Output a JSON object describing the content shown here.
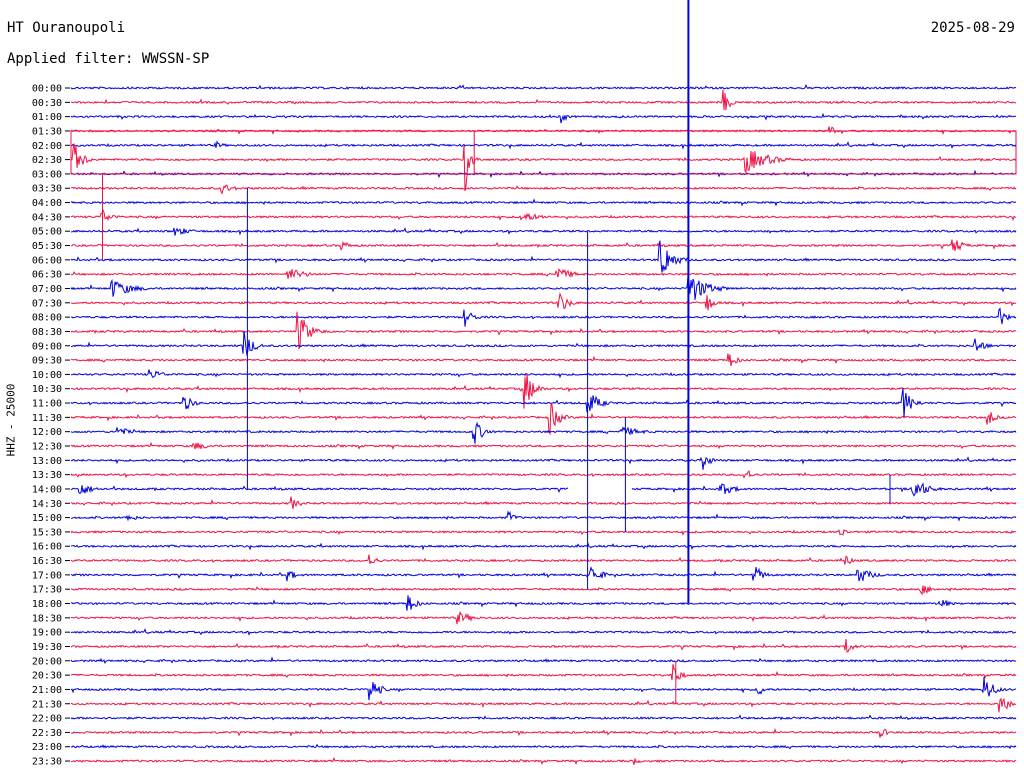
{
  "header": {
    "station": "HT Ouranoupoli",
    "filter": "Applied filter: WWSSN-SP",
    "date": "2025-08-29",
    "channel": "HHZ - 25000"
  },
  "colors": {
    "trace_a": "#0000dd",
    "trace_b": "#ee1144"
  },
  "chart_data": {
    "type": "line",
    "title": "HT Ouranoupoli",
    "subtitle": "Applied filter: WWSSN-SP",
    "ylabel": "HHZ - 25000",
    "y_tick_labels": [
      "00:00",
      "00:30",
      "01:00",
      "01:30",
      "02:00",
      "02:30",
      "03:00",
      "03:30",
      "04:00",
      "04:30",
      "05:00",
      "05:30",
      "06:00",
      "06:30",
      "07:00",
      "07:30",
      "08:00",
      "08:30",
      "09:00",
      "09:30",
      "10:00",
      "10:30",
      "11:00",
      "11:30",
      "12:00",
      "12:30",
      "13:00",
      "13:30",
      "14:00",
      "14:30",
      "15:00",
      "15:30",
      "16:00",
      "16:30",
      "17:00",
      "17:30",
      "18:00",
      "18:30",
      "19:00",
      "19:30",
      "20:00",
      "20:30",
      "21:00",
      "21:30",
      "22:00",
      "22:30",
      "23:00",
      "23:30"
    ],
    "x_range_minutes": [
      0,
      30
    ],
    "series": [
      {
        "color": "blue",
        "rows": "even"
      },
      {
        "color": "red",
        "rows": "odd"
      }
    ],
    "events": [
      {
        "row": "00:30",
        "minute": 20.7,
        "amp": 14,
        "dur": 0.6
      },
      {
        "row": "01:00",
        "minute": 15.6,
        "amp": 7,
        "dur": 0.4
      },
      {
        "row": "01:30",
        "minute": 24.1,
        "amp": 7,
        "dur": 0.4
      },
      {
        "row": "02:00",
        "minute": 4.6,
        "amp": 4,
        "dur": 0.8
      },
      {
        "row": "02:30",
        "minute": 0.1,
        "amp": 18,
        "dur": 0.8
      },
      {
        "row": "02:30",
        "minute": 12.5,
        "amp": 40,
        "dur": 0.5
      },
      {
        "row": "02:30",
        "minute": 21.4,
        "amp": 14,
        "dur": 2.0
      },
      {
        "row": "03:30",
        "minute": 4.8,
        "amp": 6,
        "dur": 1.0
      },
      {
        "row": "04:30",
        "minute": 1.0,
        "amp": 8,
        "dur": 0.8
      },
      {
        "row": "04:30",
        "minute": 14.3,
        "amp": 5,
        "dur": 2.0
      },
      {
        "row": "05:00",
        "minute": 3.3,
        "amp": 5,
        "dur": 1.5
      },
      {
        "row": "05:30",
        "minute": 8.6,
        "amp": 5,
        "dur": 0.8
      },
      {
        "row": "05:30",
        "minute": 28.0,
        "amp": 10,
        "dur": 0.8
      },
      {
        "row": "06:00",
        "minute": 18.7,
        "amp": 25,
        "dur": 1.0
      },
      {
        "row": "06:30",
        "minute": 6.9,
        "amp": 7,
        "dur": 1.6
      },
      {
        "row": "06:30",
        "minute": 15.4,
        "amp": 8,
        "dur": 1.4
      },
      {
        "row": "07:00",
        "minute": 1.3,
        "amp": 10,
        "dur": 1.8
      },
      {
        "row": "07:00",
        "minute": 19.6,
        "amp": 18,
        "dur": 1.6
      },
      {
        "row": "07:30",
        "minute": 15.5,
        "amp": 12,
        "dur": 0.8
      },
      {
        "row": "07:30",
        "minute": 20.2,
        "amp": 10,
        "dur": 0.6
      },
      {
        "row": "08:00",
        "minute": 12.5,
        "amp": 10,
        "dur": 0.8
      },
      {
        "row": "08:00",
        "minute": 29.5,
        "amp": 10,
        "dur": 0.6
      },
      {
        "row": "08:30",
        "minute": 7.2,
        "amp": 22,
        "dur": 1.0
      },
      {
        "row": "09:00",
        "minute": 5.5,
        "amp": 16,
        "dur": 0.8
      },
      {
        "row": "09:00",
        "minute": 28.7,
        "amp": 10,
        "dur": 0.8
      },
      {
        "row": "09:30",
        "minute": 20.9,
        "amp": 8,
        "dur": 0.8
      },
      {
        "row": "10:00",
        "minute": 2.5,
        "amp": 6,
        "dur": 1.2
      },
      {
        "row": "10:30",
        "minute": 14.4,
        "amp": 22,
        "dur": 0.8
      },
      {
        "row": "11:00",
        "minute": 3.6,
        "amp": 9,
        "dur": 0.8
      },
      {
        "row": "11:00",
        "minute": 16.4,
        "amp": 14,
        "dur": 1.0
      },
      {
        "row": "11:00",
        "minute": 26.4,
        "amp": 18,
        "dur": 0.8
      },
      {
        "row": "11:30",
        "minute": 15.2,
        "amp": 18,
        "dur": 0.8
      },
      {
        "row": "11:30",
        "minute": 29.1,
        "amp": 10,
        "dur": 0.6
      },
      {
        "row": "12:00",
        "minute": 1.5,
        "amp": 6,
        "dur": 1.0
      },
      {
        "row": "12:00",
        "minute": 12.8,
        "amp": 14,
        "dur": 0.8
      },
      {
        "row": "12:00",
        "minute": 17.5,
        "amp": 5,
        "dur": 2.0
      },
      {
        "row": "12:30",
        "minute": 3.9,
        "amp": 5,
        "dur": 1.4
      },
      {
        "row": "13:00",
        "minute": 20.1,
        "amp": 10,
        "dur": 0.6
      },
      {
        "row": "13:30",
        "minute": 21.4,
        "amp": 8,
        "dur": 0.6
      },
      {
        "row": "14:00",
        "minute": 0.3,
        "amp": 8,
        "dur": 1.0
      },
      {
        "row": "14:00",
        "minute": 20.6,
        "amp": 8,
        "dur": 1.2
      },
      {
        "row": "14:00",
        "minute": 26.7,
        "amp": 14,
        "dur": 1.2
      },
      {
        "row": "14:30",
        "minute": 7.0,
        "amp": 7,
        "dur": 0.8
      },
      {
        "row": "15:00",
        "minute": 1.8,
        "amp": 4,
        "dur": 1.0
      },
      {
        "row": "15:00",
        "minute": 13.9,
        "amp": 7,
        "dur": 0.6
      },
      {
        "row": "15:30",
        "minute": 24.4,
        "amp": 8,
        "dur": 0.5
      },
      {
        "row": "16:30",
        "minute": 9.5,
        "amp": 7,
        "dur": 0.6
      },
      {
        "row": "16:30",
        "minute": 24.6,
        "amp": 6,
        "dur": 0.6
      },
      {
        "row": "17:00",
        "minute": 6.9,
        "amp": 7,
        "dur": 0.6
      },
      {
        "row": "17:00",
        "minute": 16.5,
        "amp": 10,
        "dur": 1.0
      },
      {
        "row": "17:00",
        "minute": 21.7,
        "amp": 10,
        "dur": 0.8
      },
      {
        "row": "17:00",
        "minute": 25.0,
        "amp": 9,
        "dur": 1.2
      },
      {
        "row": "17:30",
        "minute": 27.0,
        "amp": 6,
        "dur": 1.0
      },
      {
        "row": "18:00",
        "minute": 10.7,
        "amp": 10,
        "dur": 0.8
      },
      {
        "row": "18:00",
        "minute": 27.6,
        "amp": 5,
        "dur": 1.0
      },
      {
        "row": "18:30",
        "minute": 12.3,
        "amp": 7,
        "dur": 1.2
      },
      {
        "row": "19:30",
        "minute": 24.6,
        "amp": 9,
        "dur": 0.6
      },
      {
        "row": "20:30",
        "minute": 19.1,
        "amp": 16,
        "dur": 0.6
      },
      {
        "row": "21:00",
        "minute": 9.5,
        "amp": 14,
        "dur": 0.8
      },
      {
        "row": "21:00",
        "minute": 21.8,
        "amp": 8,
        "dur": 0.6
      },
      {
        "row": "21:00",
        "minute": 29.0,
        "amp": 16,
        "dur": 0.8
      },
      {
        "row": "21:30",
        "minute": 29.5,
        "amp": 16,
        "dur": 0.6
      },
      {
        "row": "22:30",
        "minute": 25.7,
        "amp": 8,
        "dur": 0.5
      },
      {
        "row": "23:30",
        "minute": 17.9,
        "amp": 4,
        "dur": 0.5
      }
    ],
    "spikes": [
      {
        "minute": 19.6,
        "from_row": "00:00",
        "to_row": "18:00",
        "color": "blue"
      },
      {
        "minute": 12.8,
        "from_row": "01:30",
        "to_row": "03:00",
        "color": "red"
      },
      {
        "minute": 1.0,
        "from_row": "03:00",
        "to_row": "06:00",
        "color": "red"
      },
      {
        "minute": 5.6,
        "from_row": "03:30",
        "to_row": "14:00",
        "color": "blue"
      },
      {
        "minute": 16.4,
        "from_row": "05:00",
        "to_row": "17:30",
        "color": "blue"
      },
      {
        "minute": 17.6,
        "from_row": "11:30",
        "to_row": "15:30",
        "color": "blue"
      },
      {
        "minute": 26.0,
        "from_row": "13:30",
        "to_row": "14:30",
        "color": "blue"
      },
      {
        "minute": 19.2,
        "from_row": "20:00",
        "to_row": "21:30",
        "color": "red"
      }
    ],
    "boxes": [
      {
        "from_row": "01:30",
        "to_row": "03:00",
        "minute_from": 0,
        "minute_to": 30,
        "color": "red"
      }
    ],
    "gaps": [
      {
        "row": "14:00",
        "minute_from": 15.8,
        "minute_to": 17.8
      }
    ],
    "grid": false
  }
}
